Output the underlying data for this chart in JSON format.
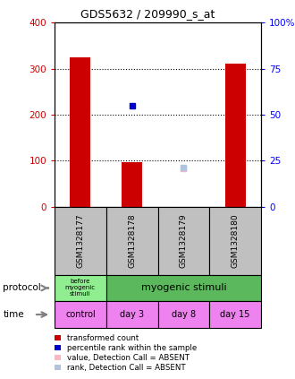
{
  "title": "GDS5632 / 209990_s_at",
  "samples": [
    "GSM1328177",
    "GSM1328178",
    "GSM1328179",
    "GSM1328180"
  ],
  "red_bars": [
    325,
    97,
    null,
    312
  ],
  "blue_squares_left": [
    null,
    220,
    null,
    null
  ],
  "pink_squares_left": [
    null,
    null,
    83,
    null
  ],
  "lightblue_squares_right": [
    null,
    null,
    21,
    null
  ],
  "ylim_left": [
    0,
    400
  ],
  "ylim_right": [
    0,
    100
  ],
  "yticks_left": [
    0,
    100,
    200,
    300,
    400
  ],
  "yticks_right": [
    0,
    25,
    50,
    75,
    100
  ],
  "ytick_labels_right": [
    "0",
    "25",
    "50",
    "75",
    "100%"
  ],
  "time_labels": [
    "control",
    "day 3",
    "day 8",
    "day 15"
  ],
  "time_color": "#EE82EE",
  "sample_box_color": "#C0C0C0",
  "protocol_before_color": "#90EE90",
  "protocol_myogenic_color": "#5CB85C",
  "legend_items": [
    {
      "color": "#CC0000",
      "label": "transformed count"
    },
    {
      "color": "#0000CC",
      "label": "percentile rank within the sample"
    },
    {
      "color": "#FFB6C1",
      "label": "value, Detection Call = ABSENT"
    },
    {
      "color": "#B0C4DE",
      "label": "rank, Detection Call = ABSENT"
    }
  ]
}
